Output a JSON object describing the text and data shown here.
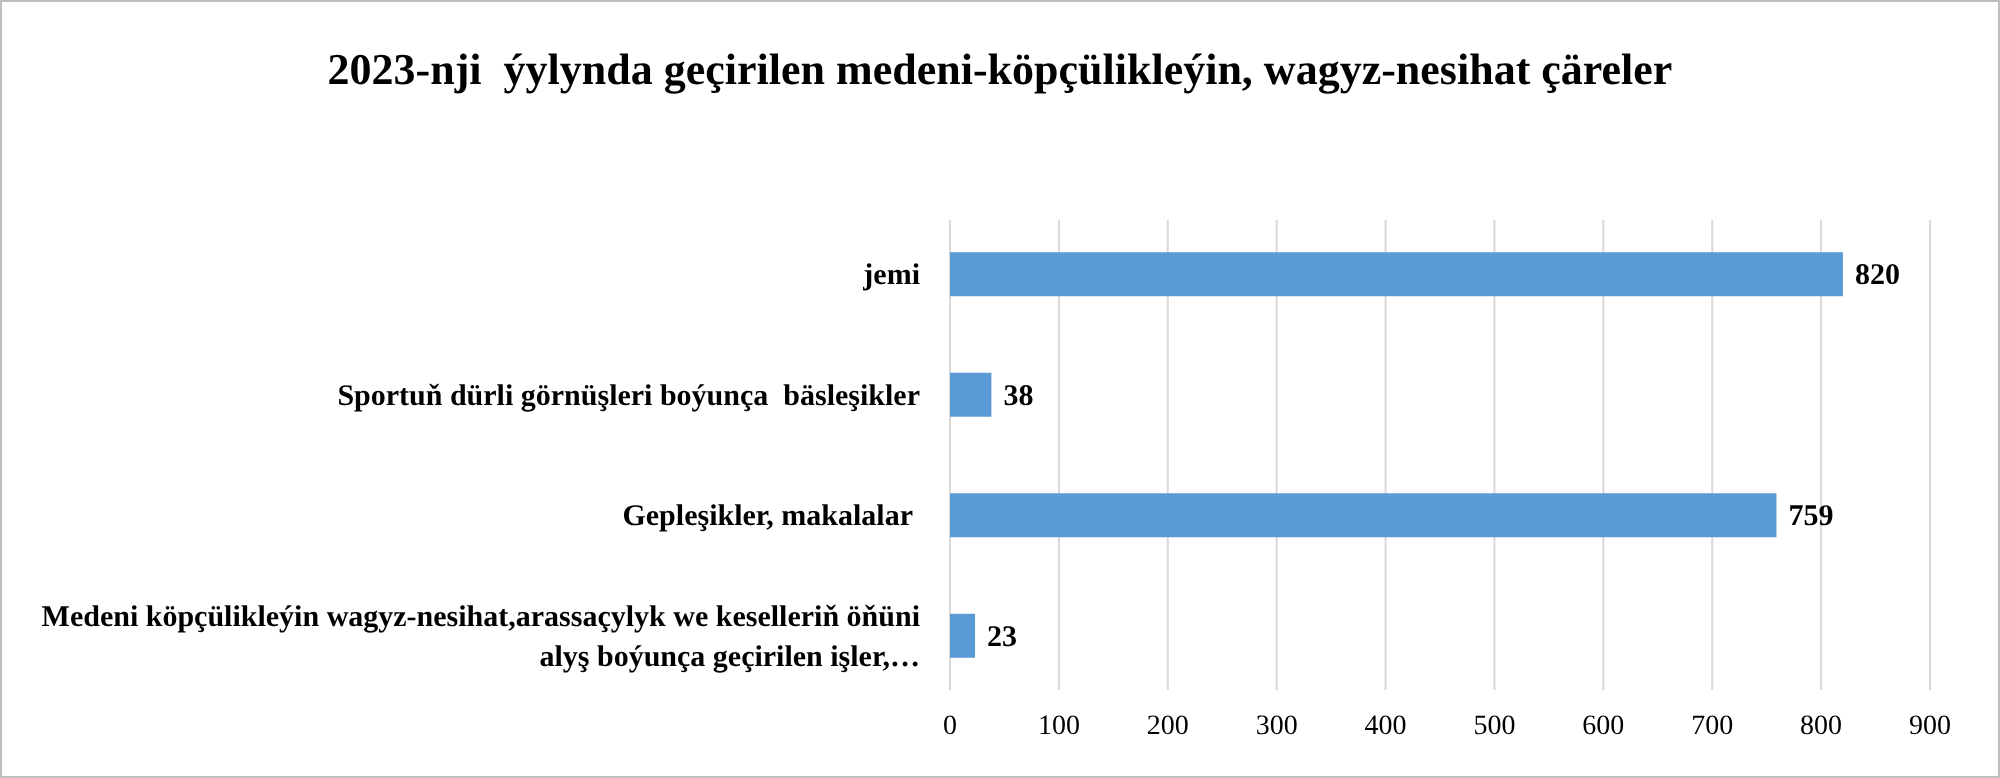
{
  "chart_data": {
    "type": "bar",
    "orientation": "horizontal",
    "title": "2023-nji  ýylynda geçirilen medeni-köpçülikleýin, wagyz-nesihat çäreler",
    "categories": [
      "jemi",
      "Sportuň dürli görnüşleri boýunça  bäsleşikler",
      "Gepleşikler, makalalar ",
      "Medeni köpçülikleýin wagyz-nesihat,arassaçylyk we keselleriň öňüni alyş boýunça geçirilen işler,…"
    ],
    "values": [
      820,
      38,
      759,
      23
    ],
    "color": "#5b9bd5",
    "xlim": [
      0,
      900
    ],
    "xticks": [
      0,
      100,
      200,
      300,
      400,
      500,
      600,
      700,
      800,
      900
    ],
    "grid": "x",
    "data_labels": true
  }
}
